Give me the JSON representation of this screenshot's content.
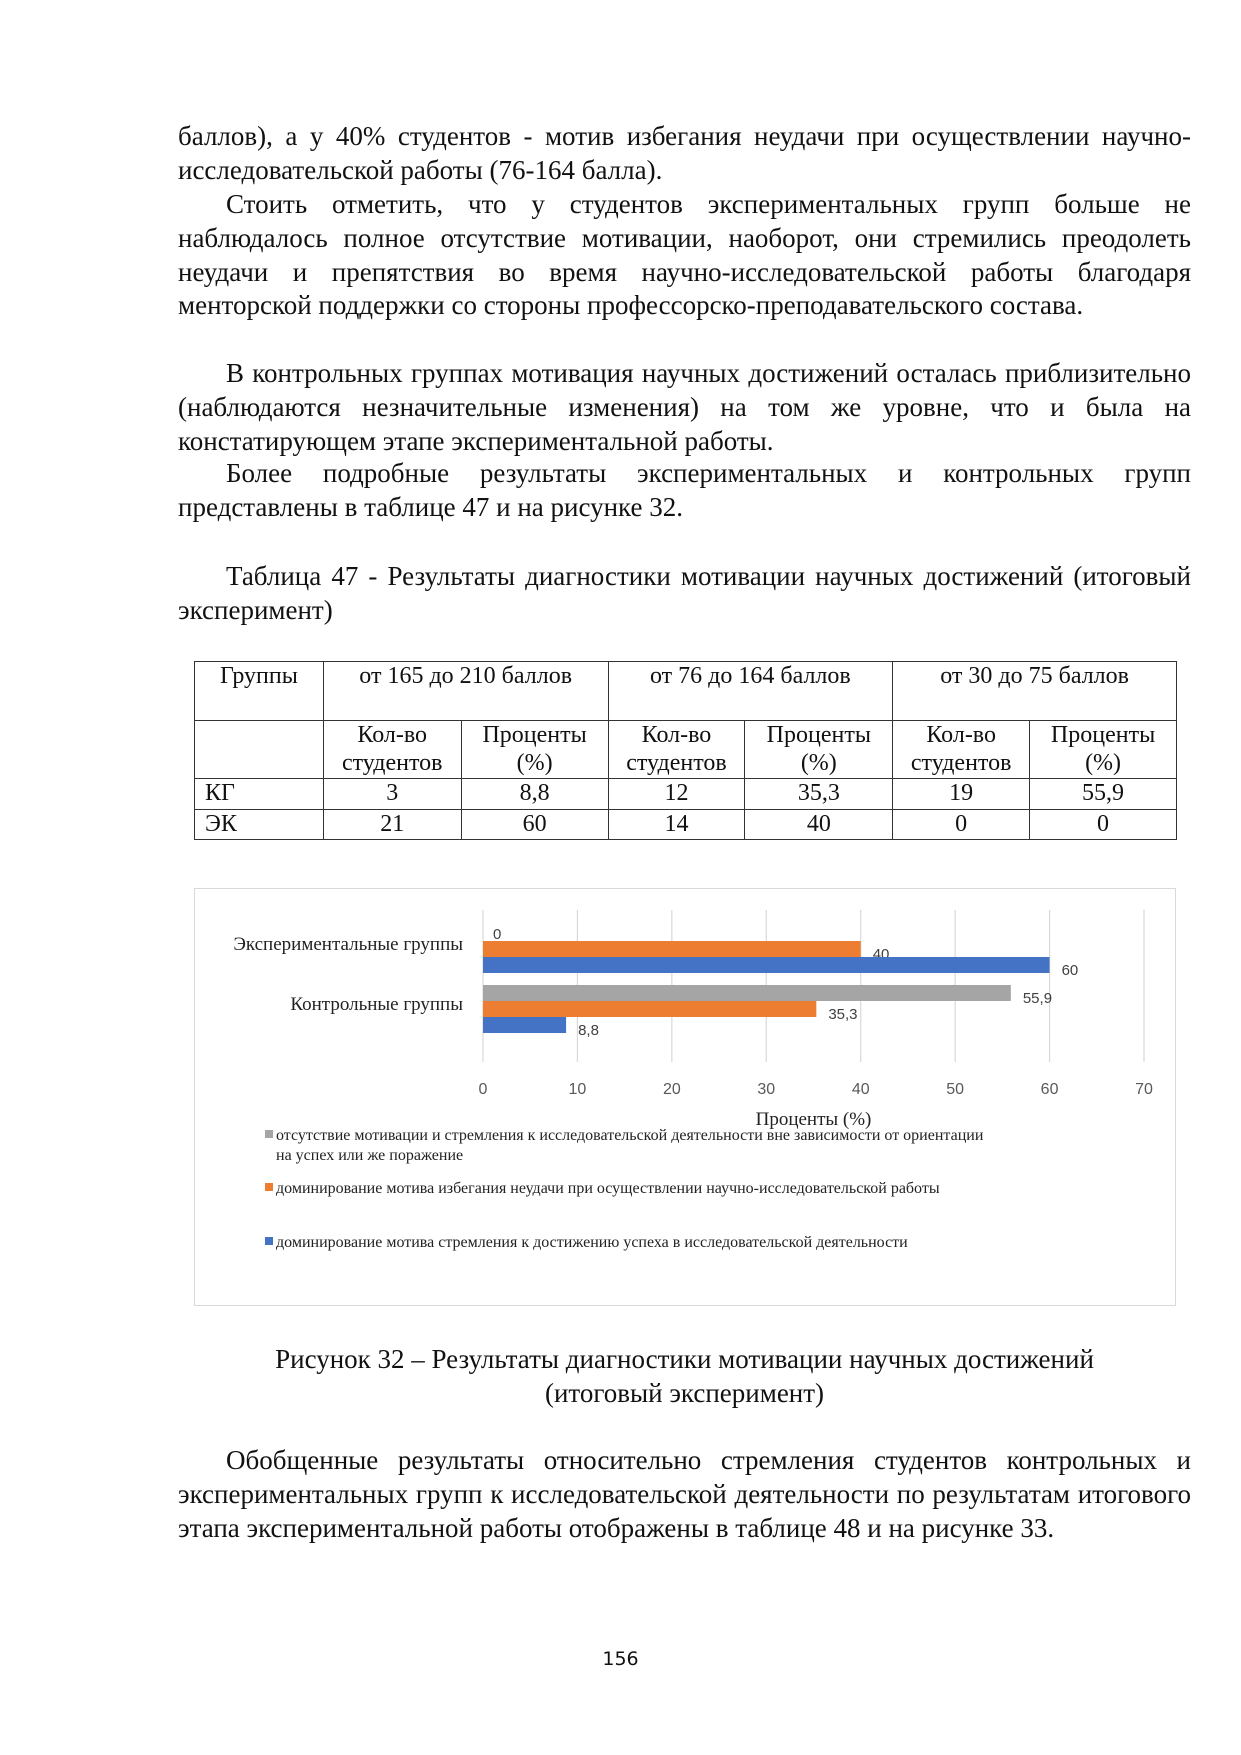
{
  "paragraphs": [
    "баллов), а у 40% студентов - мотив избегания неудачи при осуществлении научно-исследовательской работы (76-164 балла).",
    "Стоить отметить, что у студентов экспериментальных групп больше не наблюдалось полное отсутствие мотивации, наоборот, они стремились преодолеть неудачи и препятствия во время научно-исследовательской работы благодаря менторской поддержки со стороны профессорско-преподавательского состава.",
    "В контрольных группах мотивация научных достижений осталась приблизительно (наблюдаются незначительные изменения) на том же уровне, что и была на констатирующем этапе экспериментальной работы.",
    "Более подробные результаты экспериментальных и контрольных групп представлены в таблице 47 и на рисунке 32."
  ],
  "table_caption": "Таблица 47 - Результаты диагностики мотивации научных достижений (итоговый эксперимент)",
  "table": {
    "group_header": "Группы",
    "ranges": [
      "от 165 до 210 баллов",
      "от 76 до 164 баллов",
      "от 30 до 75 баллов"
    ],
    "sub_headers": [
      "Кол-во студентов",
      "Проценты (%)"
    ],
    "rows": [
      {
        "group": "КГ",
        "values": [
          "3",
          "8,8",
          "12",
          "35,3",
          "19",
          "55,9"
        ]
      },
      {
        "group": "ЭК",
        "values": [
          "21",
          "60",
          "14",
          "40",
          "0",
          "0"
        ]
      }
    ]
  },
  "chart_data": {
    "type": "bar",
    "orientation": "horizontal",
    "categories": [
      "Экспериментальные группы",
      "Контрольные группы"
    ],
    "series": [
      {
        "name": "отсутствие мотивации и стремления к исследовательской деятельности вне зависимости от ориентации на успех или же поражение",
        "color": "#a5a5a5",
        "values": [
          0,
          55.9
        ],
        "labels": [
          "0",
          "55,9"
        ]
      },
      {
        "name": "доминирование мотива избегания неудачи при осуществлении научно-исследовательской работы",
        "color": "#ed7d31",
        "values": [
          40,
          35.3
        ],
        "labels": [
          "40",
          "35,3"
        ]
      },
      {
        "name": "доминирование мотива стремления к достижению успеха в исследовательской деятельности",
        "color": "#4472c4",
        "values": [
          60,
          8.8
        ],
        "labels": [
          "60",
          "8,8"
        ]
      }
    ],
    "xlabel": "Проценты (%)",
    "xlim": [
      0,
      70
    ],
    "xticks": [
      "0",
      "10",
      "20",
      "30",
      "40",
      "50",
      "60",
      "70"
    ],
    "grid": true,
    "legend": "bottom"
  },
  "figure_caption": [
    "Рисунок 32 – Результаты диагностики мотивации научных достижений",
    "(итоговый эксперимент)"
  ],
  "closing_paragraph": "Обобщенные результаты относительно стремления студентов контрольных и экспериментальных групп к исследовательской деятельности по результатам итогового этапа экспериментальной работы отображены в таблице 48 и на рисунке 33.",
  "page_number": "156"
}
